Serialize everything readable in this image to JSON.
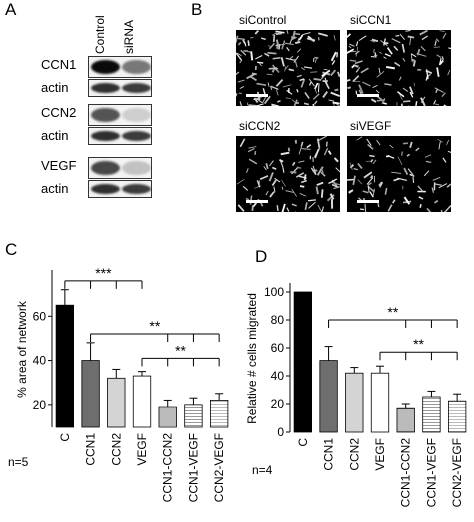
{
  "panel_a": {
    "letter": "A",
    "column_labels": [
      "Control",
      "siRNA"
    ],
    "row_labels": [
      "CCN1",
      "actin",
      "CCN2",
      "actin",
      "VEGF",
      "actin"
    ],
    "band_intensity": [
      [
        1.0,
        0.55
      ],
      [
        0.85,
        0.8
      ],
      [
        0.7,
        0.2
      ],
      [
        0.85,
        0.8
      ],
      [
        0.75,
        0.25
      ],
      [
        0.85,
        0.8
      ]
    ]
  },
  "panel_b": {
    "letter": "B",
    "images": [
      {
        "label": "siControl",
        "density": 0.55
      },
      {
        "label": "siCCN1",
        "density": 0.4
      },
      {
        "label": "siCCN2",
        "density": 0.35
      },
      {
        "label": "siVEGF",
        "density": 0.3
      }
    ]
  },
  "chart_data": [
    {
      "type": "bar",
      "panel": "C",
      "ylabel": "% area of network",
      "n_label": "n=5",
      "categories": [
        "C",
        "CCN1",
        "CCN2",
        "VEGF",
        "CCN1-CCN2",
        "CCN1-VEGF",
        "CCN2-VEGF"
      ],
      "values": [
        65,
        40,
        32,
        33,
        19,
        20,
        22
      ],
      "errors": [
        7,
        8,
        4,
        2,
        3,
        3,
        3
      ],
      "fills": [
        "#000000",
        "#6e6e6e",
        "#d4d4d4",
        "#ffffff",
        "stripes-dense",
        "stripes",
        "stripes-light"
      ],
      "ylim": [
        10,
        80
      ],
      "yticks": [
        20,
        40,
        60
      ],
      "significance": [
        {
          "label": "***",
          "from": 0,
          "to": [
            1,
            2,
            3
          ],
          "level": 76
        },
        {
          "label": "**",
          "from": 1,
          "to": [
            4,
            5,
            6
          ],
          "level": 52
        },
        {
          "label": "**",
          "from": 3,
          "to": [
            4,
            5,
            6
          ],
          "level": 41
        }
      ]
    },
    {
      "type": "bar",
      "panel": "D",
      "ylabel": "Relative # cells migrated",
      "n_label": "n=4",
      "categories": [
        "C",
        "CCN1",
        "CCN2",
        "VEGF",
        "CCN1-CCN2",
        "CCN1-VEGF",
        "CCN2-VEGF"
      ],
      "values": [
        100,
        51,
        42,
        42,
        17,
        25,
        22
      ],
      "errors": [
        0,
        10,
        4,
        5,
        3,
        4,
        5
      ],
      "fills": [
        "#000000",
        "#6e6e6e",
        "#d4d4d4",
        "#ffffff",
        "stripes-dense",
        "stripes",
        "stripes-light"
      ],
      "ylim": [
        0,
        105
      ],
      "yticks": [
        0,
        20,
        40,
        60,
        80,
        100
      ],
      "significance": [
        {
          "label": "**",
          "from": 1,
          "to": [
            4,
            5,
            6
          ],
          "level": 80
        },
        {
          "label": "**",
          "from": 3,
          "to": [
            4,
            5,
            6
          ],
          "level": 57
        }
      ]
    }
  ],
  "panel_letters": {
    "c": "C",
    "d": "D"
  }
}
